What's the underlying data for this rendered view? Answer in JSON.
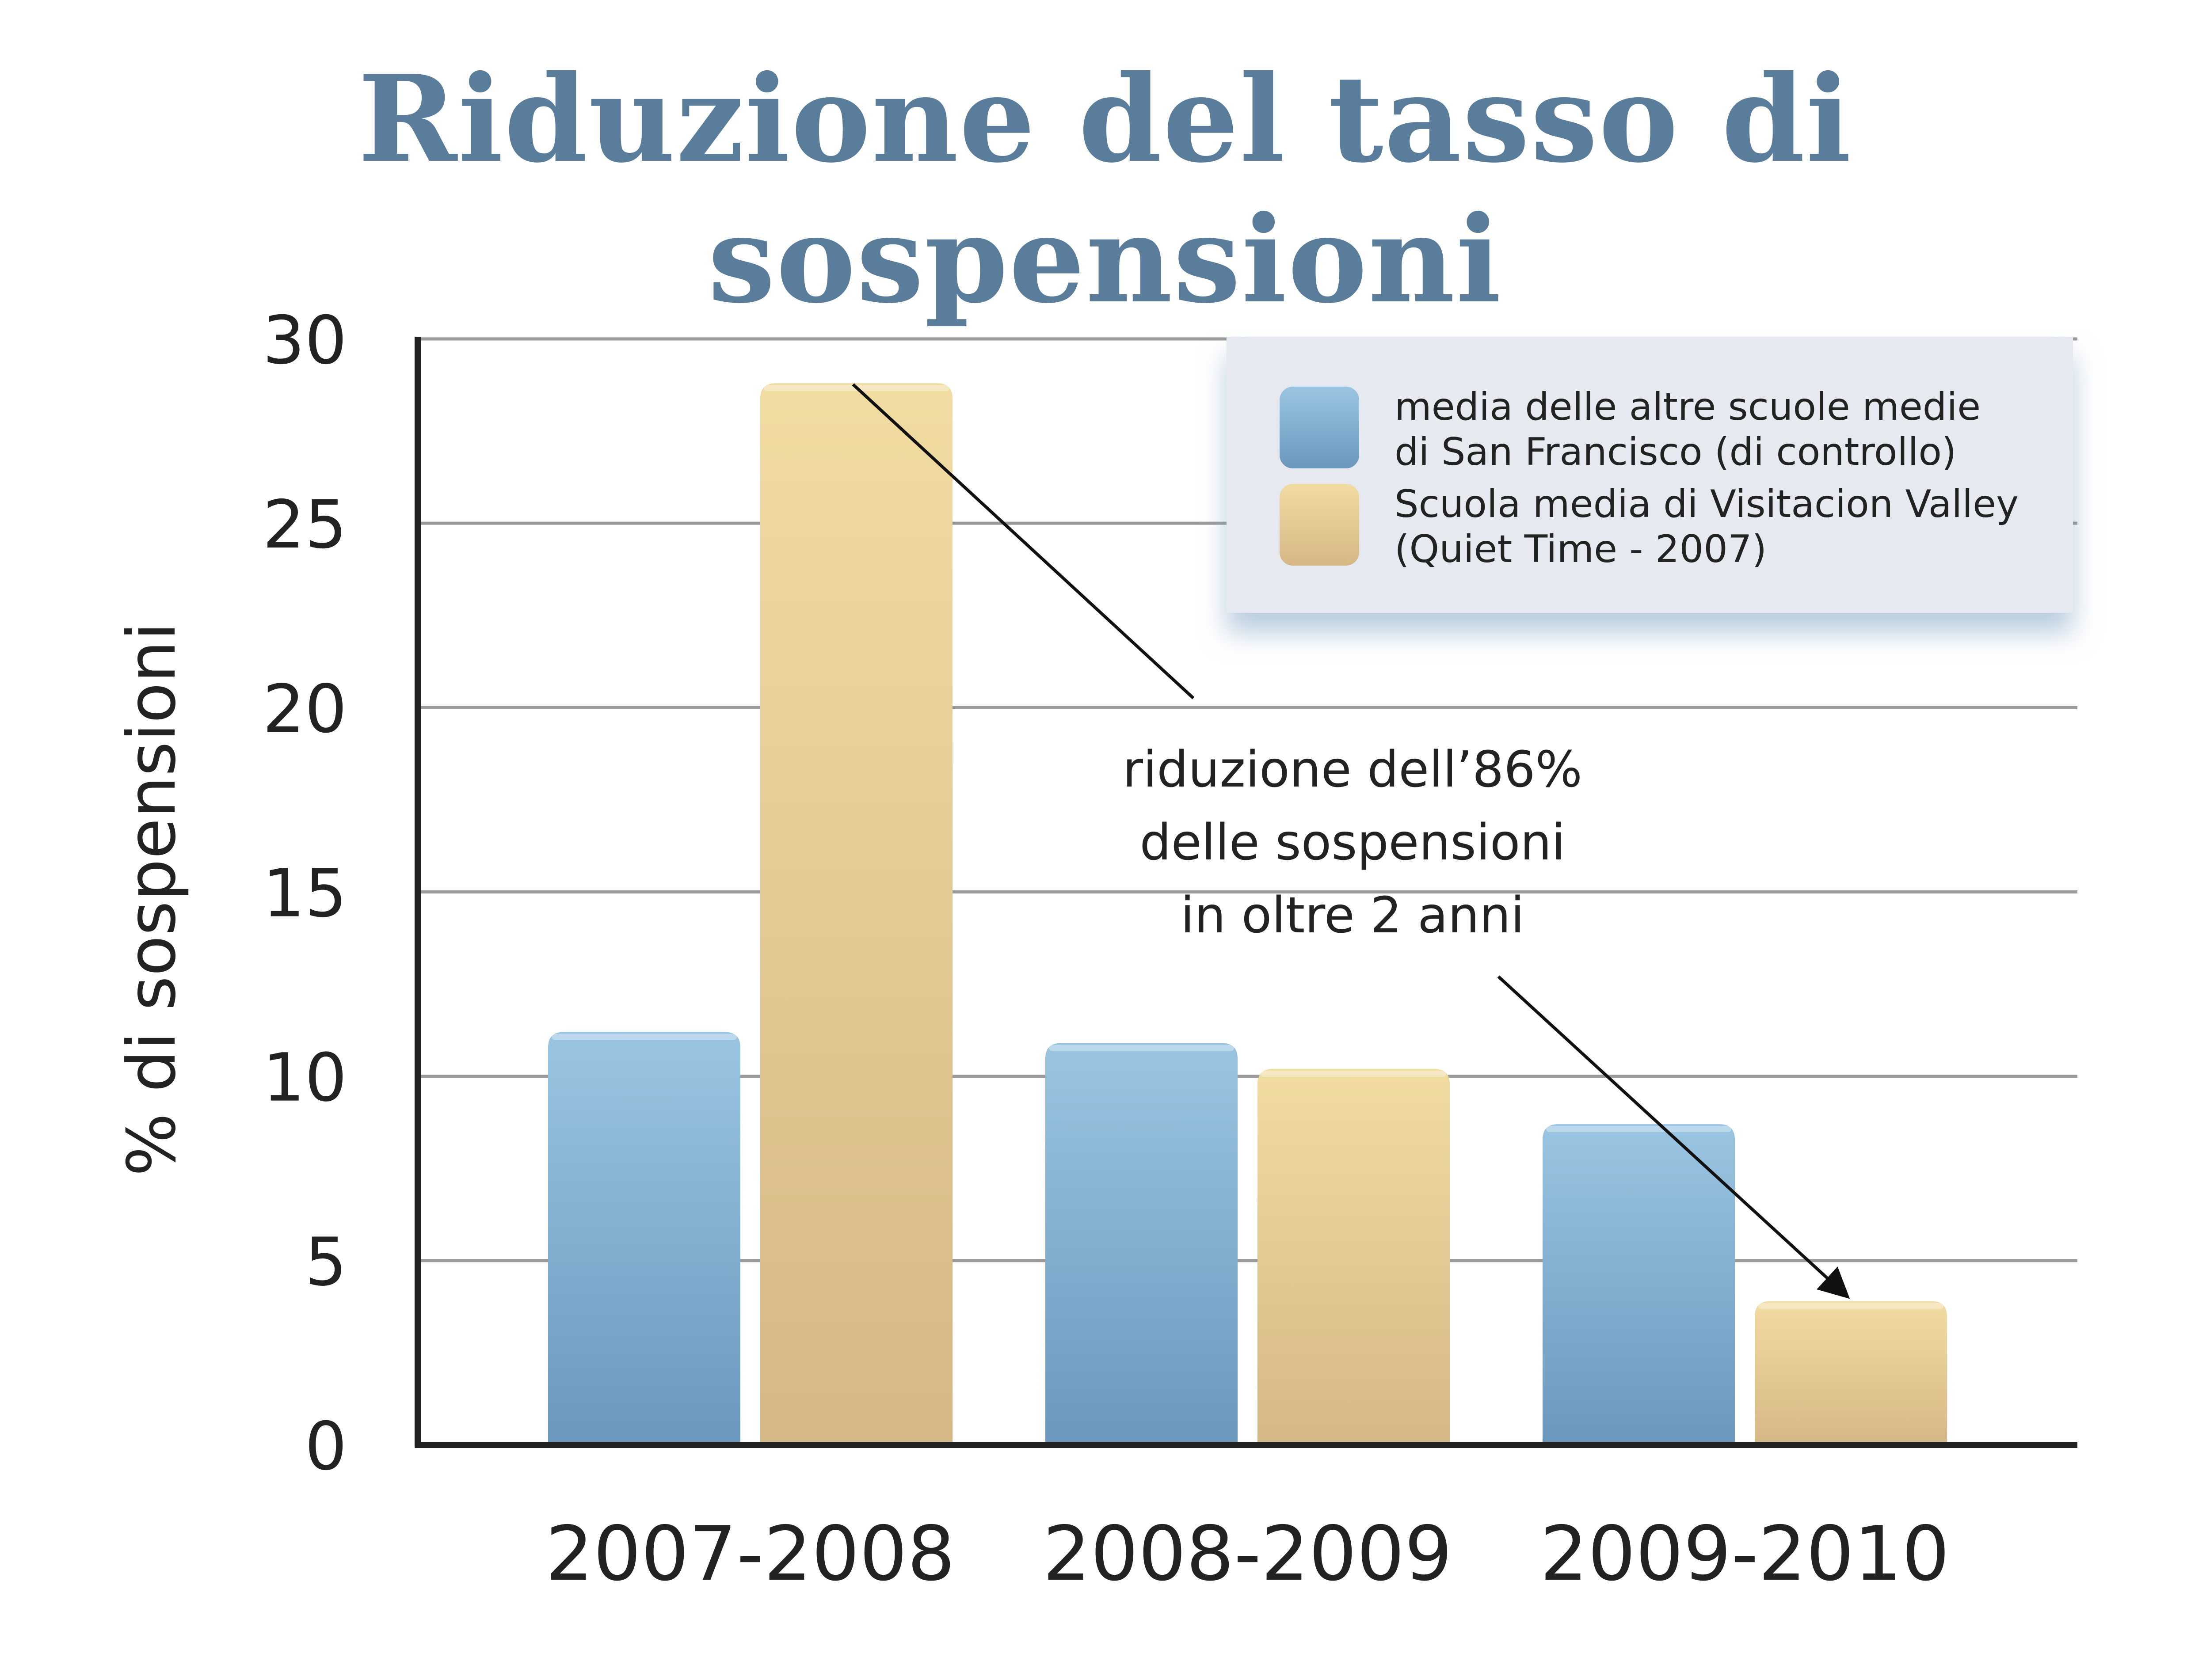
{
  "title": "Riduzione del tasso di sospensioni",
  "colors": {
    "title": "#5a7d9c",
    "control_top": "#9ac5e2",
    "control_bottom": "#6a98bd",
    "visitacion_top": "#f1dca2",
    "visitacion_bottom": "#d6b786",
    "grid": "#9a9a9a",
    "axis": "#222222",
    "legend_bg": "#e6eaf0"
  },
  "chart_data": {
    "type": "bar",
    "categories": [
      "2007-2008",
      "2008-2009",
      "2009-2010"
    ],
    "series": [
      {
        "name": "media delle altre scuole medie di San Francisco (di controllo)",
        "color_key": "control",
        "values": [
          11.2,
          10.9,
          8.7
        ]
      },
      {
        "name": "Scuola media di Visitacion Valley (Quiet Time - 2007)",
        "color_key": "visitacion",
        "values": [
          28.8,
          10.2,
          3.9
        ]
      }
    ],
    "ylabel": "% di sospensioni",
    "xlabel": "",
    "ylim": [
      0,
      30
    ],
    "yticks": [
      0,
      5,
      10,
      15,
      20,
      25,
      30
    ],
    "grid": true,
    "legend": {
      "placement": "top-right",
      "entries": [
        {
          "color_key": "control",
          "lines": [
            "media delle altre scuole medie",
            "di San Francisco (di controllo)"
          ]
        },
        {
          "color_key": "visitacion",
          "lines": [
            "Scuola media di Visitacion Valley",
            "(Quiet Time - 2007)"
          ]
        }
      ]
    },
    "annotation": {
      "lines": [
        "riduzione dell’86%",
        "delle sospensioni",
        "in oltre 2 anni"
      ],
      "from": {
        "category": "2007-2008",
        "series": 1,
        "value": 28.8
      },
      "to": {
        "category": "2009-2010",
        "series": 1,
        "value": 3.9
      }
    }
  }
}
